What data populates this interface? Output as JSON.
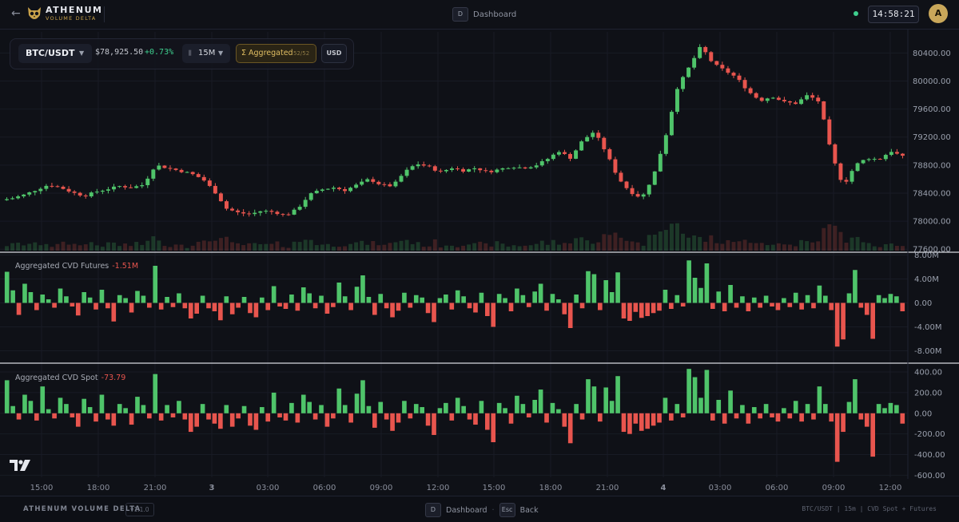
{
  "header": {
    "app_name": "ATHENUM",
    "app_sub": "VOLUME DELTA",
    "shortcut_key": "D",
    "shortcut_label": "Dashboard",
    "clock": "14:58:21",
    "avatar_initial": "A"
  },
  "toolbar": {
    "symbol": "BTC/USDT",
    "price": "$78,925.50",
    "change": "+0.73%",
    "timeframe": "15M",
    "aggregated_label": "Aggregated",
    "aggregated_count": "52/52",
    "currency": "USD"
  },
  "panes": {
    "futures_label": "Aggregated CVD Futures",
    "futures_value": "-1.51M",
    "spot_label": "Aggregated CVD Spot",
    "spot_value": "-73.79"
  },
  "footer": {
    "brand": "ATHENUM VOLUME DELTA",
    "version": "v1.1.0",
    "key1": "D",
    "key1_label": "Dashboard",
    "key2": "Esc",
    "key2_label": "Back",
    "info": "BTC/USDT | 15m | CVD Spot + Futures"
  },
  "colors": {
    "up": "#4fc46a",
    "down": "#e8554e",
    "accent": "#e2bf63",
    "background": "#0f1117"
  },
  "chart_data": [
    {
      "type": "candlestick",
      "y_ticks": [
        "80400.00",
        "80000.00",
        "79600.00",
        "79200.00",
        "78800.00",
        "78400.00",
        "78000.00",
        "77600.00"
      ],
      "ylim": [
        77580,
        80700
      ],
      "x_ticks": [
        "15:00",
        "18:00",
        "21:00",
        "3",
        "03:00",
        "06:00",
        "09:00",
        "12:00",
        "15:00",
        "18:00",
        "21:00",
        "4",
        "03:00",
        "06:00",
        "09:00",
        "12:00"
      ],
      "close_path": [
        78300,
        78330,
        78380,
        78450,
        78520,
        78480,
        78410,
        78360,
        78420,
        78460,
        78500,
        78480,
        78520,
        78800,
        78760,
        78720,
        78680,
        78600,
        78420,
        78180,
        78120,
        78100,
        78150,
        78130,
        78080,
        78180,
        78380,
        78450,
        78480,
        78440,
        78520,
        78600,
        78520,
        78500,
        78700,
        78820,
        78780,
        78700,
        78760,
        78720,
        78760,
        78700,
        78740,
        78780,
        78760,
        78790,
        78880,
        79000,
        78900,
        79150,
        79280,
        78980,
        78620,
        78420,
        78330,
        78650,
        79200,
        79900,
        80200,
        80500,
        80250,
        80150,
        80050,
        79850,
        79720,
        79780,
        79700,
        79680,
        79800,
        79700,
        78950,
        78500,
        78800,
        78900,
        78880,
        79000,
        78920
      ]
    },
    {
      "type": "bar",
      "name": "Aggregated CVD Futures",
      "y_ticks": [
        "8.00M",
        "4.00M",
        "0.00",
        "-4.00M",
        "-8.00M"
      ],
      "ylim": [
        -9.8,
        8.2
      ],
      "unit": "M",
      "values": [
        5.2,
        2.1,
        -2.0,
        3.2,
        1.8,
        -1.2,
        1.4,
        0.6,
        -0.8,
        2.4,
        1.1,
        -0.6,
        -2.1,
        1.8,
        0.9,
        -1.1,
        2.2,
        -0.9,
        -3.1,
        1.3,
        0.8,
        -1.6,
        2.0,
        1.2,
        -0.8,
        6.2,
        -1.1,
        1.0,
        -0.7,
        1.6,
        -0.9,
        -2.6,
        -1.8,
        1.2,
        -0.9,
        -1.4,
        -2.9,
        1.1,
        -1.9,
        -0.8,
        1.0,
        -1.7,
        -2.4,
        0.9,
        -1.2,
        2.8,
        -0.6,
        -1.0,
        1.4,
        -1.3,
        2.6,
        1.6,
        -0.9,
        1.2,
        -1.8,
        -0.7,
        3.4,
        1.1,
        -1.2,
        2.7,
        4.6,
        1.0,
        -2.0,
        1.5,
        -0.9,
        -2.4,
        -1.3,
        1.7,
        -0.8,
        1.3,
        0.9,
        -1.7,
        -3.2,
        0.8,
        1.4,
        -1.1,
        2.1,
        1.1,
        -0.9,
        -1.6,
        1.7,
        -2.2,
        -4.0,
        1.5,
        0.8,
        -1.4,
        2.4,
        1.3,
        -0.7,
        1.9,
        3.2,
        -1.3,
        1.5,
        0.6,
        -1.9,
        -4.2,
        1.4,
        -0.9,
        5.3,
        4.8,
        -1.2,
        3.8,
        1.8,
        5.1,
        -2.6,
        -3.0,
        -1.5,
        -2.5,
        -2.2,
        -1.7,
        -1.3,
        2.2,
        -1.0,
        1.3,
        -0.6,
        7.1,
        4.2,
        2.5,
        6.6,
        -1.0,
        1.9,
        -1.4,
        3.0,
        -0.8,
        1.1,
        -1.4,
        0.9,
        -0.8,
        1.2,
        -0.6,
        -1.2,
        0.8,
        -0.7,
        1.7,
        -1.1,
        1.3,
        -0.9,
        2.9,
        1.2,
        -1.2,
        -7.3,
        -6.1,
        1.6,
        5.5,
        -0.8,
        -2.0,
        -6.0,
        1.3,
        0.8,
        1.5,
        1.1,
        -1.4
      ]
    },
    {
      "type": "bar",
      "name": "Aggregated CVD Spot",
      "y_ticks": [
        "400.00",
        "200.00",
        "0.00",
        "-200.00",
        "-400.00",
        "-600.00"
      ],
      "ylim": [
        -620,
        470
      ],
      "values": [
        320,
        70,
        -60,
        180,
        120,
        -70,
        260,
        40,
        -50,
        150,
        90,
        -40,
        -130,
        140,
        60,
        -80,
        180,
        -60,
        -120,
        90,
        50,
        -110,
        160,
        80,
        -50,
        380,
        -70,
        80,
        -40,
        120,
        -60,
        -180,
        -130,
        90,
        -60,
        -100,
        -150,
        80,
        -130,
        -50,
        70,
        -120,
        -160,
        60,
        -80,
        200,
        -40,
        -70,
        100,
        -90,
        180,
        110,
        -60,
        80,
        -130,
        -50,
        240,
        80,
        -90,
        190,
        320,
        70,
        -140,
        110,
        -60,
        -170,
        -90,
        120,
        -50,
        90,
        60,
        -120,
        -210,
        50,
        100,
        -70,
        150,
        70,
        -60,
        -110,
        120,
        -160,
        -280,
        100,
        50,
        -100,
        170,
        90,
        -40,
        130,
        230,
        -90,
        100,
        40,
        -130,
        -290,
        90,
        -60,
        330,
        260,
        -80,
        250,
        120,
        360,
        -180,
        -200,
        -100,
        -170,
        -150,
        -120,
        -90,
        150,
        -70,
        90,
        -40,
        430,
        350,
        150,
        420,
        -70,
        130,
        -100,
        220,
        -50,
        80,
        -100,
        60,
        -50,
        90,
        -40,
        -80,
        50,
        -50,
        120,
        -80,
        90,
        -60,
        260,
        90,
        -80,
        -470,
        -180,
        110,
        330,
        -60,
        -130,
        -420,
        90,
        50,
        100,
        80,
        -100
      ]
    }
  ]
}
